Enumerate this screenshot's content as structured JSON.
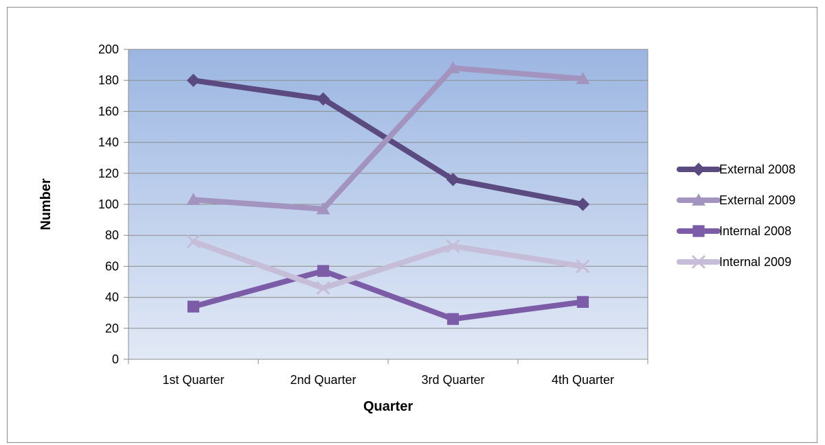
{
  "chart_data": {
    "type": "line",
    "title": "",
    "xlabel": "Quarter",
    "ylabel": "Number",
    "categories": [
      "1st Quarter",
      "2nd Quarter",
      "3rd Quarter",
      "4th Quarter"
    ],
    "ylim": [
      0,
      200
    ],
    "yticks": [
      0,
      20,
      40,
      60,
      80,
      100,
      120,
      140,
      160,
      180,
      200
    ],
    "grid": true,
    "legend_position": "right",
    "series": [
      {
        "name": "External 2008",
        "values": [
          180,
          168,
          116,
          100
        ],
        "color": "#5b4a80",
        "marker": "diamond"
      },
      {
        "name": "External 2009",
        "values": [
          103,
          97,
          188,
          181
        ],
        "color": "#a393bf",
        "marker": "triangle"
      },
      {
        "name": "Internal 2008",
        "values": [
          34,
          57,
          26,
          37
        ],
        "color": "#7c5ca6",
        "marker": "square"
      },
      {
        "name": "Internal 2009",
        "values": [
          76,
          46,
          73,
          60
        ],
        "color": "#c6bdd8",
        "marker": "x"
      }
    ],
    "plot_background": {
      "top_color": "#9bb6e2",
      "bottom_color": "#e2e9f6"
    }
  }
}
